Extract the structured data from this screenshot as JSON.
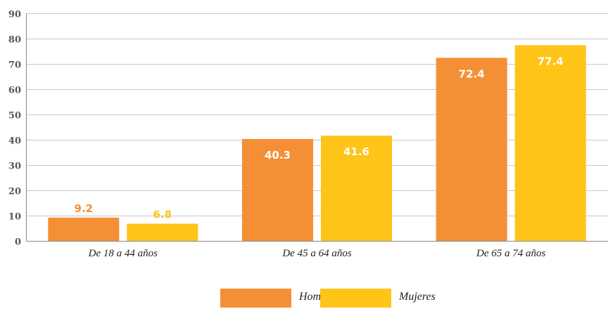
{
  "chart_data": {
    "type": "bar",
    "categories": [
      "De 18 a 44 años",
      "De 45 a 64 años",
      "De 65 a 74 años"
    ],
    "series": [
      {
        "name": "Hombres",
        "values": [
          9.2,
          40.3,
          72.4
        ],
        "color": "#F58F35"
      },
      {
        "name": "Mujeres",
        "values": [
          6.8,
          41.6,
          77.4
        ],
        "color": "#FEC418"
      }
    ],
    "data_labels": [
      [
        "9.2",
        "40.3",
        "72.4"
      ],
      [
        "6.8",
        "41.6",
        "77.4"
      ]
    ],
    "ylim": [
      0,
      90
    ],
    "yticks": [
      0,
      10,
      20,
      30,
      40,
      50,
      60,
      70,
      80,
      90
    ],
    "grid": true,
    "legend_position": "bottom-center",
    "colors": {
      "grid": "#c8c8c8",
      "axis": "#888888",
      "tick_text": "#555555",
      "label_inside": "#ffffff"
    }
  }
}
